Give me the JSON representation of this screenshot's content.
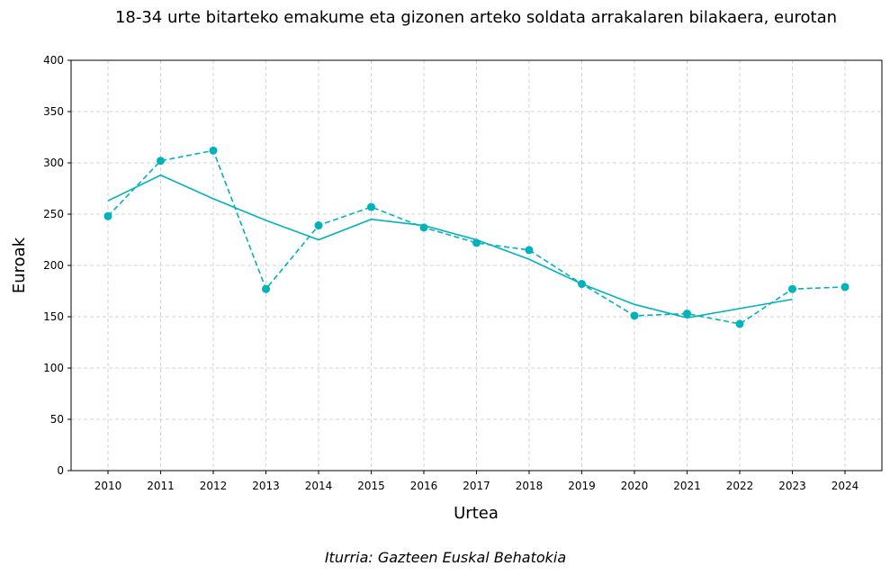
{
  "chart_data": {
    "type": "line",
    "title": "18-34 urte bitarteko emakume eta gizonen arteko soldata arrakalaren bilakaera, eurotan",
    "xlabel": "Urtea",
    "ylabel": "Euroak",
    "source": "Iturria: Gazteen Euskal Behatokia",
    "ylim": [
      0,
      400
    ],
    "yticks": [
      0,
      50,
      100,
      150,
      200,
      250,
      300,
      350,
      400
    ],
    "x": [
      2010,
      2011,
      2012,
      2013,
      2014,
      2015,
      2016,
      2017,
      2018,
      2019,
      2020,
      2021,
      2022,
      2023,
      2024
    ],
    "grid": true,
    "color": "#00b3ba",
    "series": [
      {
        "style": "dashed-markers",
        "values": [
          248,
          302,
          312,
          177,
          239,
          257,
          237,
          222,
          215,
          182,
          151,
          153,
          143,
          177,
          179
        ]
      },
      {
        "style": "solid",
        "values": [
          263,
          288,
          265,
          244,
          225,
          245,
          239,
          225,
          206,
          182,
          162,
          149,
          158,
          167,
          null
        ]
      }
    ]
  }
}
